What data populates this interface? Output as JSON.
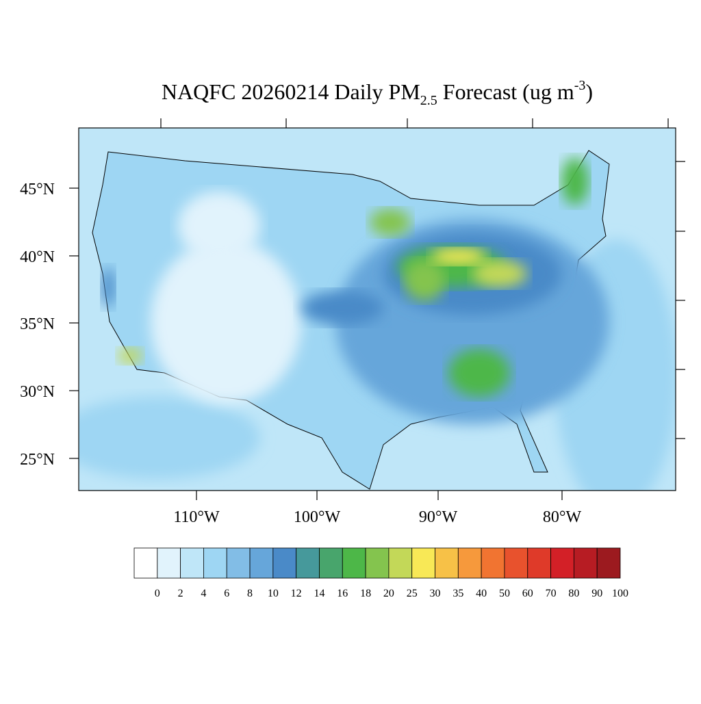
{
  "title": {
    "main": "NAQFC 20260214 Daily PM",
    "subscript": "2.5",
    "after": " Forecast (ug m",
    "superscript": "-3",
    "close": ")"
  },
  "map": {
    "lat_labels": [
      "45°N",
      "40°N",
      "35°N",
      "30°N",
      "25°N"
    ],
    "lon_labels": [
      "110°W",
      "100°W",
      "90°W",
      "80°W"
    ]
  },
  "colorbar": {
    "colors": [
      "#ffffff",
      "#e1f3fc",
      "#bfe6f8",
      "#9ed6f3",
      "#82bde6",
      "#66a6da",
      "#4a8ac8",
      "#46999b",
      "#48a56c",
      "#4db748",
      "#84c44e",
      "#c3d858",
      "#f8e856",
      "#f7c147",
      "#f6993c",
      "#f17431",
      "#e8522d",
      "#df3a29",
      "#d32027",
      "#b71c23",
      "#9c1a1f"
    ],
    "labels": [
      0,
      2,
      4,
      6,
      8,
      10,
      12,
      14,
      16,
      18,
      20,
      25,
      30,
      35,
      40,
      50,
      60,
      70,
      80,
      90,
      100
    ]
  }
}
